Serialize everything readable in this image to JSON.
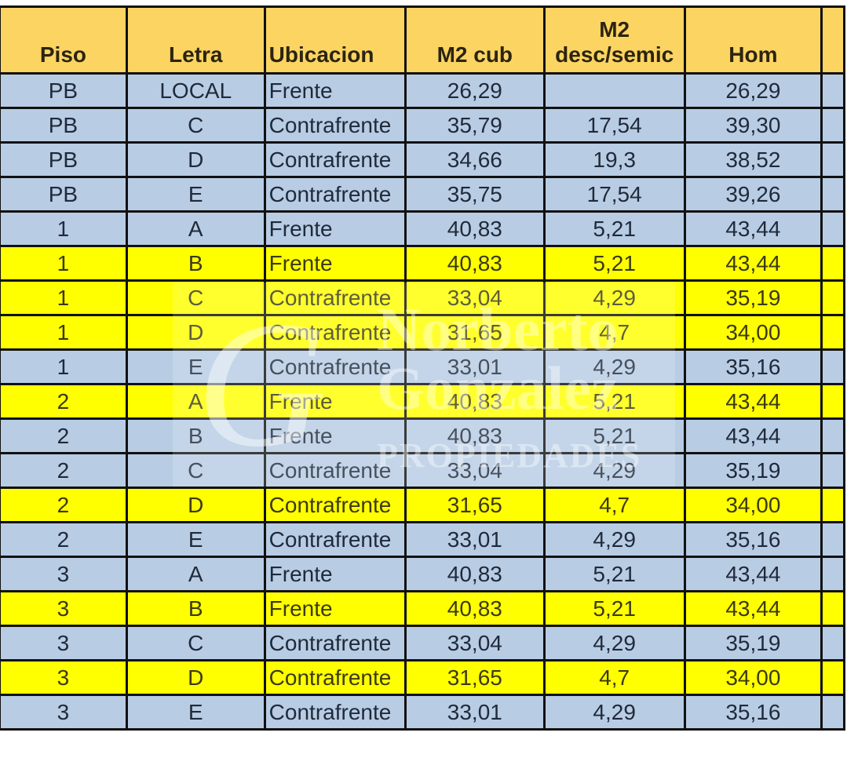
{
  "headers": [
    "Piso",
    "Letra",
    "Ubicacion",
    "M2 cub",
    "M2\ndesc/semic",
    "Hom"
  ],
  "header_m2_line1": "M2",
  "header_m2_line2": "desc/semic",
  "colors": {
    "header": "#fcd462",
    "row": "#b8cce4",
    "highlight": "#ffff00"
  },
  "watermark": {
    "line1": "Norberto",
    "line2": "Gonzalez",
    "line3": "PROPIEDADES"
  },
  "rows": [
    {
      "piso": "PB",
      "letra": "LOCAL",
      "ubicacion": "Frente",
      "m2cub": "26,29",
      "m2desc": "",
      "hom": "26,29",
      "highlight": false
    },
    {
      "piso": "PB",
      "letra": "C",
      "ubicacion": "Contrafrente",
      "m2cub": "35,79",
      "m2desc": "17,54",
      "hom": "39,30",
      "highlight": false
    },
    {
      "piso": "PB",
      "letra": "D",
      "ubicacion": "Contrafrente",
      "m2cub": "34,66",
      "m2desc": "19,3",
      "hom": "38,52",
      "highlight": false
    },
    {
      "piso": "PB",
      "letra": "E",
      "ubicacion": "Contrafrente",
      "m2cub": "35,75",
      "m2desc": "17,54",
      "hom": "39,26",
      "highlight": false
    },
    {
      "piso": "1",
      "letra": "A",
      "ubicacion": "Frente",
      "m2cub": "40,83",
      "m2desc": "5,21",
      "hom": "43,44",
      "highlight": false
    },
    {
      "piso": "1",
      "letra": "B",
      "ubicacion": "Frente",
      "m2cub": "40,83",
      "m2desc": "5,21",
      "hom": "43,44",
      "highlight": true
    },
    {
      "piso": "1",
      "letra": "C",
      "ubicacion": "Contrafrente",
      "m2cub": "33,04",
      "m2desc": "4,29",
      "hom": "35,19",
      "highlight": true
    },
    {
      "piso": "1",
      "letra": "D",
      "ubicacion": "Contrafrente",
      "m2cub": "31,65",
      "m2desc": "4,7",
      "hom": "34,00",
      "highlight": true
    },
    {
      "piso": "1",
      "letra": "E",
      "ubicacion": "Contrafrente",
      "m2cub": "33,01",
      "m2desc": "4,29",
      "hom": "35,16",
      "highlight": false
    },
    {
      "piso": "2",
      "letra": "A",
      "ubicacion": "Frente",
      "m2cub": "40,83",
      "m2desc": "5,21",
      "hom": "43,44",
      "highlight": true
    },
    {
      "piso": "2",
      "letra": "B",
      "ubicacion": "Frente",
      "m2cub": "40,83",
      "m2desc": "5,21",
      "hom": "43,44",
      "highlight": false
    },
    {
      "piso": "2",
      "letra": "C",
      "ubicacion": "Contrafrente",
      "m2cub": "33,04",
      "m2desc": "4,29",
      "hom": "35,19",
      "highlight": false
    },
    {
      "piso": "2",
      "letra": "D",
      "ubicacion": "Contrafrente",
      "m2cub": "31,65",
      "m2desc": "4,7",
      "hom": "34,00",
      "highlight": true
    },
    {
      "piso": "2",
      "letra": "E",
      "ubicacion": "Contrafrente",
      "m2cub": "33,01",
      "m2desc": "4,29",
      "hom": "35,16",
      "highlight": false
    },
    {
      "piso": "3",
      "letra": "A",
      "ubicacion": "Frente",
      "m2cub": "40,83",
      "m2desc": "5,21",
      "hom": "43,44",
      "highlight": false
    },
    {
      "piso": "3",
      "letra": "B",
      "ubicacion": "Frente",
      "m2cub": "40,83",
      "m2desc": "5,21",
      "hom": "43,44",
      "highlight": true
    },
    {
      "piso": "3",
      "letra": "C",
      "ubicacion": "Contrafrente",
      "m2cub": "33,04",
      "m2desc": "4,29",
      "hom": "35,19",
      "highlight": false
    },
    {
      "piso": "3",
      "letra": "D",
      "ubicacion": "Contrafrente",
      "m2cub": "31,65",
      "m2desc": "4,7",
      "hom": "34,00",
      "highlight": true
    },
    {
      "piso": "3",
      "letra": "E",
      "ubicacion": "Contrafrente",
      "m2cub": "33,01",
      "m2desc": "4,29",
      "hom": "35,16",
      "highlight": false
    }
  ]
}
